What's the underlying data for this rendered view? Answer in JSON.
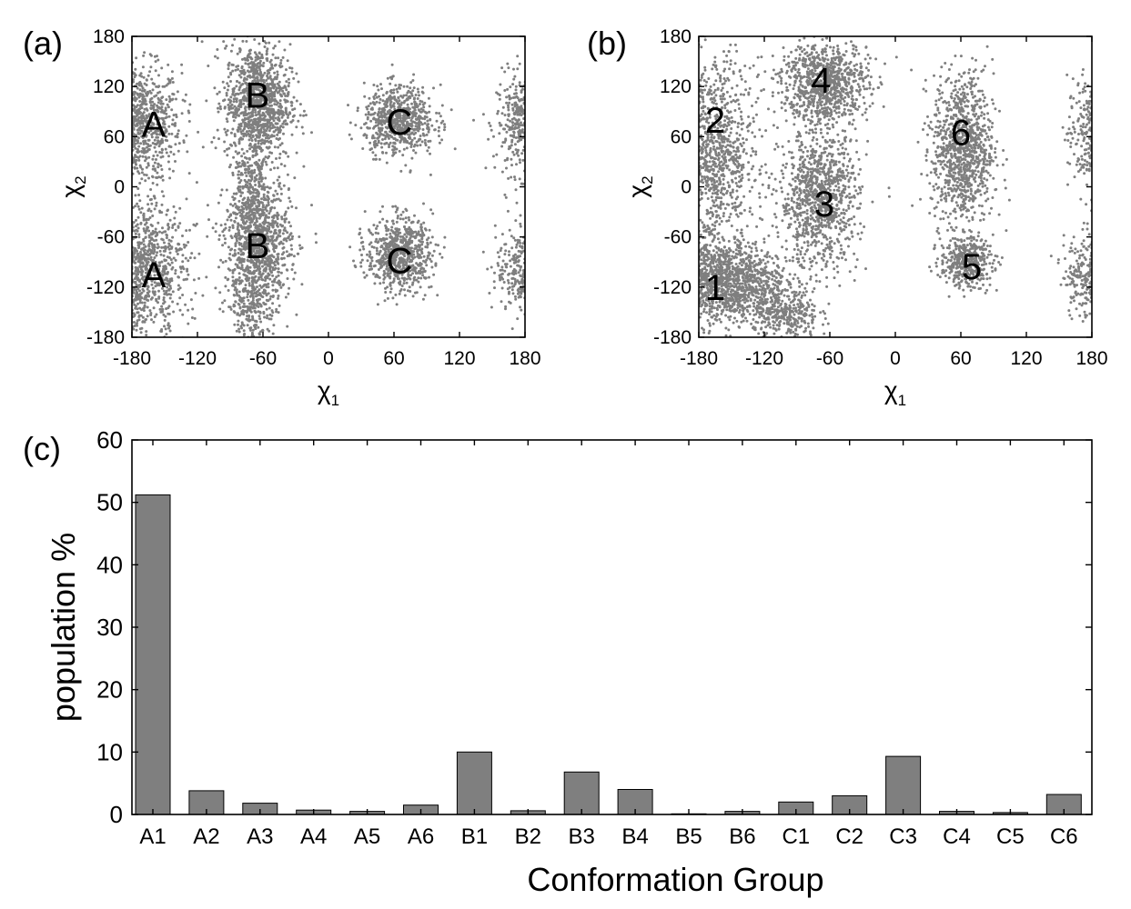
{
  "chart_data": [
    {
      "panel": "(a)",
      "type": "scatter",
      "xlabel": "χ",
      "xlabel_sub": "1",
      "ylabel": "χ",
      "ylabel_sub": "2",
      "xlim": [
        -180,
        180
      ],
      "ylim": [
        -180,
        180
      ],
      "xticks": [
        -180,
        -120,
        -60,
        0,
        60,
        120,
        180
      ],
      "yticks": [
        -180,
        -120,
        -60,
        0,
        60,
        120,
        180
      ],
      "point_color": "#7f7f7f",
      "clusters": [
        {
          "cx": -175,
          "cy": 75,
          "sx": 20,
          "sy": 35,
          "n": 900
        },
        {
          "cx": 178,
          "cy": 75,
          "sx": 12,
          "sy": 30,
          "n": 400
        },
        {
          "cx": -65,
          "cy": 100,
          "sx": 15,
          "sy": 35,
          "n": 1100
        },
        {
          "cx": 65,
          "cy": 80,
          "sx": 16,
          "sy": 20,
          "n": 700
        },
        {
          "cx": -175,
          "cy": -100,
          "sx": 22,
          "sy": 40,
          "n": 1200
        },
        {
          "cx": 178,
          "cy": -100,
          "sx": 12,
          "sy": 25,
          "n": 300
        },
        {
          "cx": -65,
          "cy": -70,
          "sx": 15,
          "sy": 40,
          "n": 1100
        },
        {
          "cx": 65,
          "cy": -80,
          "sx": 15,
          "sy": 22,
          "n": 700
        },
        {
          "cx": -70,
          "cy": -150,
          "sx": 10,
          "sy": 20,
          "n": 150
        },
        {
          "cx": -70,
          "cy": 0,
          "sx": 8,
          "sy": 25,
          "n": 150
        }
      ],
      "labels": [
        {
          "text": "A",
          "x": -160,
          "y": 75
        },
        {
          "text": "B",
          "x": -65,
          "y": 110
        },
        {
          "text": "C",
          "x": 65,
          "y": 78
        },
        {
          "text": "A",
          "x": -160,
          "y": -105
        },
        {
          "text": "B",
          "x": -65,
          "y": -70
        },
        {
          "text": "C",
          "x": 65,
          "y": -88
        }
      ]
    },
    {
      "panel": "(b)",
      "type": "scatter",
      "xlabel": "χ",
      "xlabel_sub": "1",
      "ylabel": "χ",
      "ylabel_sub": "2",
      "xlim": [
        -180,
        180
      ],
      "ylim": [
        -180,
        180
      ],
      "xticks": [
        -180,
        -120,
        -60,
        0,
        60,
        120,
        180
      ],
      "yticks": [
        -180,
        -120,
        -60,
        0,
        60,
        120,
        180
      ],
      "point_color": "#7f7f7f",
      "clusters": [
        {
          "cx": -160,
          "cy": -115,
          "sx": 30,
          "sy": 25,
          "n": 1500
        },
        {
          "cx": -165,
          "cy": 40,
          "sx": 18,
          "sy": 55,
          "n": 1000
        },
        {
          "cx": -70,
          "cy": -15,
          "sx": 18,
          "sy": 40,
          "n": 1000
        },
        {
          "cx": -65,
          "cy": 125,
          "sx": 20,
          "sy": 25,
          "n": 900
        },
        {
          "cx": 65,
          "cy": -90,
          "sx": 12,
          "sy": 15,
          "n": 400
        },
        {
          "cx": 62,
          "cy": 45,
          "sx": 14,
          "sy": 45,
          "n": 1000
        },
        {
          "cx": 178,
          "cy": 60,
          "sx": 10,
          "sy": 35,
          "n": 300
        },
        {
          "cx": 178,
          "cy": -105,
          "sx": 12,
          "sy": 25,
          "n": 300
        },
        {
          "cx": -100,
          "cy": -155,
          "sx": 15,
          "sy": 15,
          "n": 300
        }
      ],
      "labels": [
        {
          "text": "1",
          "x": -165,
          "y": -120
        },
        {
          "text": "2",
          "x": -165,
          "y": 80
        },
        {
          "text": "3",
          "x": -65,
          "y": -20
        },
        {
          "text": "4",
          "x": -68,
          "y": 128
        },
        {
          "text": "5",
          "x": 70,
          "y": -95
        },
        {
          "text": "6",
          "x": 60,
          "y": 65
        }
      ]
    },
    {
      "panel": "(c)",
      "type": "bar",
      "categories": [
        "A1",
        "A2",
        "A3",
        "A4",
        "A5",
        "A6",
        "B1",
        "B2",
        "B3",
        "B4",
        "B5",
        "B6",
        "C1",
        "C2",
        "C3",
        "C4",
        "C5",
        "C6"
      ],
      "values": [
        51.2,
        3.8,
        1.8,
        0.7,
        0.5,
        1.5,
        10.0,
        0.6,
        6.8,
        4.0,
        0.1,
        0.5,
        2.0,
        3.0,
        9.3,
        0.5,
        0.3,
        3.2
      ],
      "xlabel": "Conformation Group",
      "ylabel": "population %",
      "ylim": [
        0,
        60
      ],
      "yticks": [
        0,
        10,
        20,
        30,
        40,
        50,
        60
      ],
      "bar_color": "#7f7f7f",
      "grid": false
    }
  ]
}
